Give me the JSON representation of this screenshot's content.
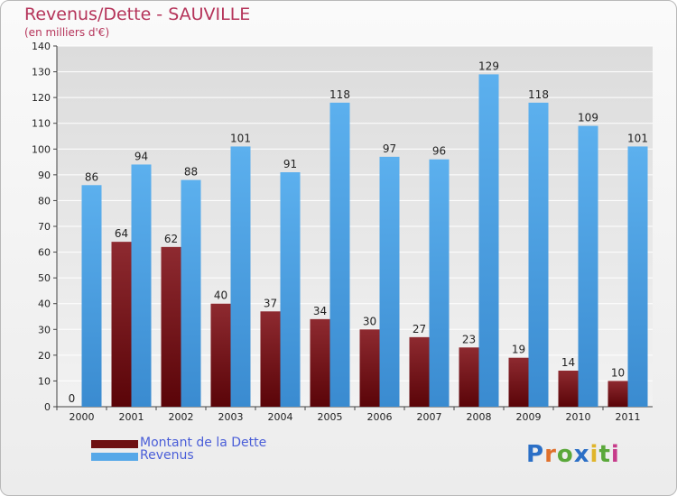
{
  "chart_data": {
    "type": "bar",
    "title": "Revenus/Dette - SAUVILLE",
    "subtitle": "(en milliers d'€)",
    "categories": [
      "2000",
      "2001",
      "2002",
      "2003",
      "2004",
      "2005",
      "2006",
      "2007",
      "2008",
      "2009",
      "2010",
      "2011"
    ],
    "series": [
      {
        "name": "Montant de la Dette",
        "color": "#6e1012",
        "values": [
          0,
          64,
          62,
          40,
          37,
          34,
          30,
          27,
          23,
          19,
          14,
          10
        ]
      },
      {
        "name": "Revenus",
        "color": "#56a8e8",
        "values": [
          86,
          94,
          88,
          101,
          91,
          118,
          97,
          96,
          129,
          118,
          109,
          101
        ]
      }
    ],
    "ylim": [
      0,
      140
    ],
    "yticks": [
      0,
      10,
      20,
      30,
      40,
      50,
      60,
      70,
      80,
      90,
      100,
      110,
      120,
      130,
      140
    ],
    "grid": true,
    "legend": "bottom-left"
  },
  "logo": {
    "letters": [
      "P",
      "r",
      "o",
      "x",
      "i",
      "t",
      "i"
    ],
    "colors": [
      "#2b6fc6",
      "#e0702b",
      "#5aa83a",
      "#2b6fc6",
      "#e0b52b",
      "#5aa83a",
      "#c63b8a"
    ]
  }
}
